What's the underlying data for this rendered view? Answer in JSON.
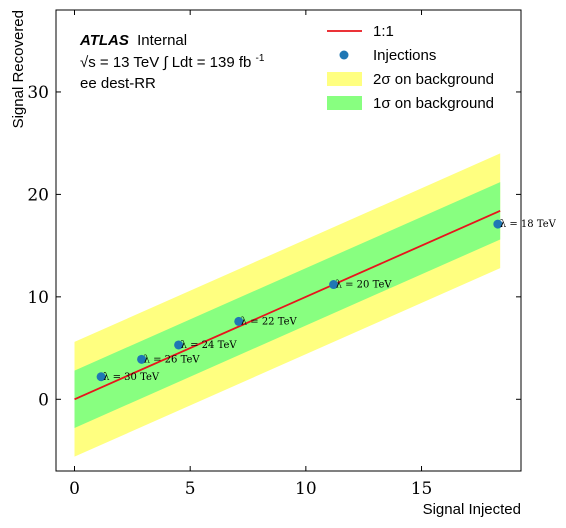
{
  "chart_data": {
    "type": "line",
    "xlabel": "Signal Injected",
    "ylabel": "Signal Recovered",
    "xlim": [
      -0.8,
      19.3
    ],
    "ylim": [
      -7,
      38
    ],
    "xticks": [
      0,
      5,
      10,
      15
    ],
    "yticks": [
      0,
      10,
      20,
      30
    ],
    "grid": false,
    "legend_position": "top-right",
    "annotations": {
      "experiment": "ATLAS",
      "status": "Internal",
      "energy": "√s = 13 TeV  ∫ Ldt = 139 fb",
      "energy_superscript": "-1",
      "channel": "ee dest-RR"
    },
    "series": [
      {
        "name": "1:1",
        "kind": "line",
        "color": "#e8141c",
        "x": [
          0,
          18.4
        ],
        "y": [
          0,
          18.4
        ]
      },
      {
        "name": "Injections",
        "kind": "scatter",
        "color": "#1f77b4",
        "points": [
          {
            "x": 1.15,
            "y": 2.2,
            "label": "λ = 30 TeV"
          },
          {
            "x": 2.9,
            "y": 3.9,
            "label": "λ = 26 TeV"
          },
          {
            "x": 4.5,
            "y": 5.3,
            "label": "λ = 24 TeV"
          },
          {
            "x": 7.1,
            "y": 7.6,
            "label": "λ = 22 TeV"
          },
          {
            "x": 11.2,
            "y": 11.2,
            "label": "λ = 20 TeV"
          },
          {
            "x": 18.3,
            "y": 17.1,
            "label": "λ = 18 TeV"
          }
        ]
      },
      {
        "name": "2σ on background",
        "kind": "band",
        "color": "#ffff80",
        "x": [
          0,
          18.4
        ],
        "lower": [
          -5.6,
          12.8
        ],
        "upper": [
          5.6,
          24.0
        ]
      },
      {
        "name": "1σ on background",
        "kind": "band",
        "color": "#88ff80",
        "x": [
          0,
          18.4
        ],
        "lower": [
          -2.8,
          15.6
        ],
        "upper": [
          2.8,
          21.2
        ]
      }
    ]
  }
}
